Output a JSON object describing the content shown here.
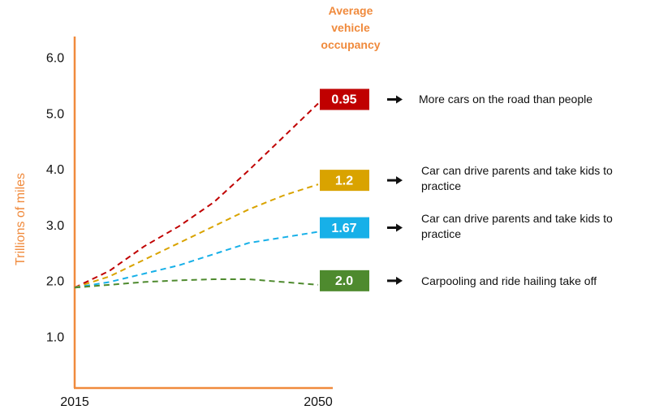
{
  "chart_data": {
    "type": "line",
    "title": "Average vehicle occupancy",
    "y_label": "Trillions of miles",
    "x": [
      2015,
      2020,
      2025,
      2030,
      2035,
      2040,
      2045,
      2050
    ],
    "xlim": [
      2015,
      2050
    ],
    "xticks": [
      2015,
      2050
    ],
    "ylim": [
      0.1,
      6.4
    ],
    "yticks": [
      {
        "value": 1,
        "label": "1.0"
      },
      {
        "value": 2,
        "label": "2.0"
      },
      {
        "value": 3,
        "label": "3.0"
      },
      {
        "value": 4,
        "label": "4.0"
      },
      {
        "value": 5,
        "label": "5.0"
      },
      {
        "value": 6,
        "label": "6.0"
      }
    ],
    "series": [
      {
        "name": "More cars on the road than people",
        "occupancy": "0.95",
        "color": "#c00000",
        "values": [
          1.9,
          2.2,
          2.64,
          3.0,
          3.43,
          4.0,
          4.6,
          5.2
        ]
      },
      {
        "name": "Car can drive parents and take kids to practice",
        "occupancy": "1.2",
        "color": "#d9a300",
        "values": [
          1.9,
          2.1,
          2.4,
          2.7,
          3.0,
          3.3,
          3.55,
          3.75
        ]
      },
      {
        "name": "Car can drive parents and take kids to practice",
        "occupancy": "1.67",
        "color": "#17b0e8",
        "values": [
          1.9,
          2.0,
          2.15,
          2.3,
          2.5,
          2.7,
          2.8,
          2.9
        ]
      },
      {
        "name": "Carpooling and ride hailing take off",
        "occupancy": "2.0",
        "color": "#4e8a2e",
        "values": [
          1.9,
          1.95,
          2.0,
          2.03,
          2.05,
          2.05,
          2.0,
          1.95
        ]
      }
    ]
  }
}
